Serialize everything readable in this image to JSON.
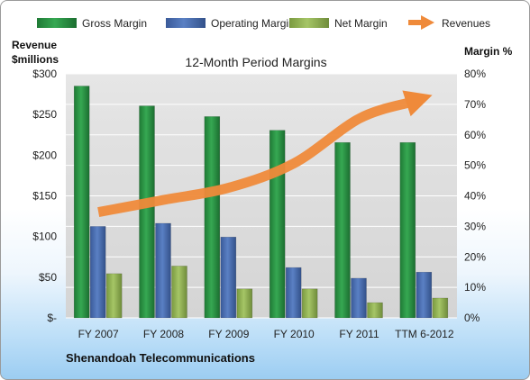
{
  "chart_data": {
    "type": "bar",
    "title": "12-Month Period Margins",
    "categories": [
      "FY 2007",
      "FY 2008",
      "FY 2009",
      "FY 2010",
      "FY 2011",
      "TTM 6-2012"
    ],
    "series": [
      {
        "name": "Gross Margin",
        "axis": "right",
        "unit": "percent",
        "values": [
          76,
          69.5,
          66,
          61.5,
          57.5,
          57.5
        ],
        "color": "#2f9a48"
      },
      {
        "name": "Operating Margin",
        "axis": "right",
        "unit": "percent",
        "values": [
          30,
          31,
          26.5,
          16.5,
          13,
          15
        ],
        "color": "#4a6fb3"
      },
      {
        "name": "Net Margin",
        "axis": "right",
        "unit": "percent",
        "values": [
          14.5,
          17,
          9.5,
          9.5,
          5,
          6.5
        ],
        "color": "#93b556"
      },
      {
        "name": "Revenues",
        "type": "line-arrow",
        "axis": "left",
        "unit": "$millions",
        "values": [
          130,
          145,
          160,
          190,
          245,
          265
        ],
        "color": "#ef8a3a"
      }
    ],
    "left_axis": {
      "label_lines": [
        "Revenue",
        "$millions"
      ],
      "ticks": [
        "$300",
        "$250",
        "$200",
        "$150",
        "$100",
        "$50",
        "$-"
      ],
      "ylim": [
        0,
        300
      ]
    },
    "right_axis": {
      "label": "Margin %",
      "ticks": [
        "80%",
        "70%",
        "60%",
        "50%",
        "40%",
        "30%",
        "20%",
        "10%",
        "0%"
      ],
      "ylim": [
        0,
        80
      ]
    },
    "grid": true,
    "legend_position": "top"
  },
  "footer": {
    "company": "Shenandoah Telecommunications"
  }
}
